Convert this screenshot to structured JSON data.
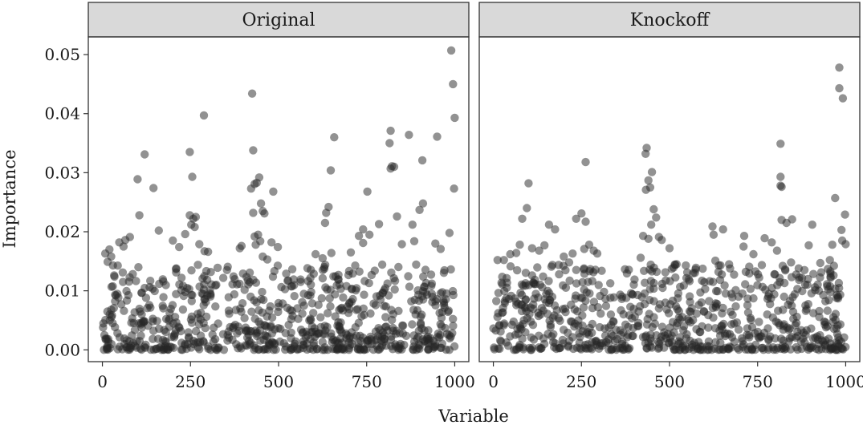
{
  "chart_data": {
    "type": "scatter",
    "facet": true,
    "xlabel": "Variable",
    "ylabel": "Importance",
    "xlim": [
      -40,
      1040
    ],
    "ylim": [
      -0.002,
      0.053
    ],
    "xticks": [
      0,
      250,
      500,
      750,
      1000
    ],
    "xtick_labels": [
      "0",
      "250",
      "500",
      "750",
      "1000"
    ],
    "yticks": [
      0.0,
      0.01,
      0.02,
      0.03,
      0.04,
      0.05
    ],
    "ytick_labels": [
      "0.00",
      "0.01",
      "0.02",
      "0.03",
      "0.04",
      "0.05"
    ],
    "grid": false,
    "point_color": "#262626",
    "strip_color": "#d9d9d9",
    "panels": [
      {
        "name": "Original",
        "points": [
          [
            990,
            0.0507
          ],
          [
            995,
            0.045
          ],
          [
            1000,
            0.0393
          ],
          [
            998,
            0.0273
          ],
          [
            288,
            0.0397
          ],
          [
            425,
            0.0434
          ],
          [
            120,
            0.0331
          ],
          [
            248,
            0.0335
          ],
          [
            428,
            0.0338
          ],
          [
            255,
            0.0293
          ],
          [
            100,
            0.0289
          ],
          [
            145,
            0.0274
          ],
          [
            432,
            0.0281
          ],
          [
            438,
            0.0283
          ],
          [
            445,
            0.0292
          ],
          [
            422,
            0.0273
          ],
          [
            485,
            0.0268
          ],
          [
            658,
            0.036
          ],
          [
            648,
            0.0304
          ],
          [
            818,
            0.0371
          ],
          [
            818,
            0.0307
          ],
          [
            822,
            0.0311
          ],
          [
            828,
            0.031
          ],
          [
            870,
            0.0364
          ],
          [
            950,
            0.0361
          ],
          [
            908,
            0.0321
          ],
          [
            815,
            0.035
          ],
          [
            752,
            0.0268
          ],
          [
            105,
            0.0228
          ],
          [
            248,
            0.0228
          ],
          [
            258,
            0.0222
          ],
          [
            265,
            0.0225
          ],
          [
            252,
            0.0212
          ],
          [
            262,
            0.0208
          ],
          [
            450,
            0.0248
          ],
          [
            428,
            0.0232
          ],
          [
            455,
            0.0235
          ],
          [
            460,
            0.0231
          ],
          [
            635,
            0.0232
          ],
          [
            642,
            0.0242
          ],
          [
            632,
            0.0215
          ],
          [
            740,
            0.0204
          ],
          [
            785,
            0.0213
          ],
          [
            836,
            0.0226
          ],
          [
            880,
            0.0212
          ],
          [
            900,
            0.0237
          ],
          [
            910,
            0.0248
          ],
          [
            985,
            0.0198
          ],
          [
            60,
            0.0175
          ],
          [
            20,
            0.017
          ],
          [
            48,
            0.0182
          ],
          [
            65,
            0.0186
          ],
          [
            78,
            0.0191
          ],
          [
            160,
            0.0202
          ],
          [
            200,
            0.0185
          ],
          [
            218,
            0.0174
          ],
          [
            235,
            0.0196
          ],
          [
            275,
            0.0179
          ],
          [
            290,
            0.0167
          ],
          [
            300,
            0.0166
          ],
          [
            390,
            0.0172
          ],
          [
            395,
            0.0176
          ],
          [
            432,
            0.0192
          ],
          [
            435,
            0.0178
          ],
          [
            442,
            0.0195
          ],
          [
            448,
            0.0184
          ],
          [
            455,
            0.0158
          ],
          [
            468,
            0.0153
          ],
          [
            480,
            0.0182
          ],
          [
            498,
            0.0174
          ],
          [
            605,
            0.0162
          ],
          [
            625,
            0.0155
          ],
          [
            650,
            0.0164
          ],
          [
            705,
            0.0165
          ],
          [
            728,
            0.0193
          ],
          [
            740,
            0.0181
          ],
          [
            758,
            0.0195
          ],
          [
            850,
            0.0179
          ],
          [
            885,
            0.0184
          ],
          [
            945,
            0.018
          ],
          [
            960,
            0.0171
          ],
          [
            25,
            0.0158
          ],
          [
            8,
            0.0163
          ],
          [
            15,
            0.0149
          ],
          [
            30,
            0.0143
          ]
        ]
      },
      {
        "name": "Knockoff",
        "points": [
          [
            982,
            0.0478
          ],
          [
            982,
            0.0443
          ],
          [
            992,
            0.0426
          ],
          [
            435,
            0.0342
          ],
          [
            432,
            0.0332
          ],
          [
            815,
            0.0349
          ],
          [
            262,
            0.0318
          ],
          [
            450,
            0.0301
          ],
          [
            440,
            0.0287
          ],
          [
            445,
            0.0275
          ],
          [
            433,
            0.0271
          ],
          [
            815,
            0.0293
          ],
          [
            815,
            0.0278
          ],
          [
            818,
            0.0276
          ],
          [
            100,
            0.0282
          ],
          [
            235,
            0.0222
          ],
          [
            250,
            0.0231
          ],
          [
            262,
            0.0217
          ],
          [
            95,
            0.024
          ],
          [
            82,
            0.0222
          ],
          [
            158,
            0.0212
          ],
          [
            175,
            0.0204
          ],
          [
            455,
            0.0238
          ],
          [
            462,
            0.0224
          ],
          [
            448,
            0.0212
          ],
          [
            622,
            0.0209
          ],
          [
            652,
            0.0204
          ],
          [
            712,
            0.0193
          ],
          [
            770,
            0.0189
          ],
          [
            818,
            0.022
          ],
          [
            832,
            0.0215
          ],
          [
            848,
            0.0221
          ],
          [
            905,
            0.0212
          ],
          [
            970,
            0.0257
          ],
          [
            998,
            0.0229
          ],
          [
            988,
            0.0203
          ],
          [
            962,
            0.0178
          ],
          [
            30,
            0.0152
          ],
          [
            12,
            0.0152
          ],
          [
            48,
            0.0162
          ],
          [
            65,
            0.0164
          ],
          [
            75,
            0.0178
          ],
          [
            110,
            0.0172
          ],
          [
            130,
            0.0168
          ],
          [
            145,
            0.0177
          ],
          [
            200,
            0.0158
          ],
          [
            215,
            0.0148
          ],
          [
            225,
            0.0163
          ],
          [
            258,
            0.0171
          ],
          [
            272,
            0.0178
          ],
          [
            285,
            0.0168
          ],
          [
            295,
            0.0163
          ],
          [
            418,
            0.0156
          ],
          [
            425,
            0.0193
          ],
          [
            440,
            0.0188
          ],
          [
            470,
            0.0191
          ],
          [
            478,
            0.0186
          ],
          [
            500,
            0.0172
          ],
          [
            520,
            0.0145
          ],
          [
            625,
            0.0195
          ],
          [
            630,
            0.0151
          ],
          [
            645,
            0.0143
          ],
          [
            710,
            0.0175
          ],
          [
            738,
            0.0162
          ],
          [
            790,
            0.0182
          ],
          [
            805,
            0.0168
          ],
          [
            845,
            0.0148
          ],
          [
            895,
            0.0177
          ],
          [
            928,
            0.0147
          ],
          [
            955,
            0.0152
          ],
          [
            990,
            0.0185
          ],
          [
            1000,
            0.0179
          ]
        ]
      }
    ]
  }
}
